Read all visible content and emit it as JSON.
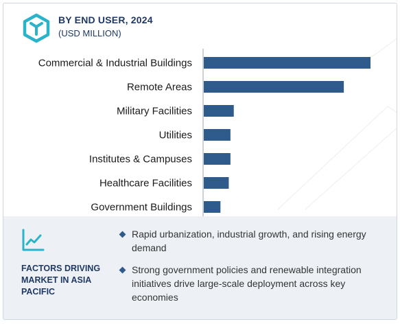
{
  "header": {
    "title": "BY END USER, 2024",
    "subtitle": "(USD MILLION)",
    "logo_icon": "hexagon-logo-icon"
  },
  "chart_data": {
    "type": "bar",
    "orientation": "horizontal",
    "categories": [
      "Commercial & Industrial Buildings",
      "Remote Areas",
      "Military Facilities",
      "Utilities",
      "Institutes & Campuses",
      "Healthcare Facilities",
      "Government Buildings"
    ],
    "values": [
      100,
      84,
      18,
      16,
      16,
      15,
      10
    ],
    "xlim": [
      0,
      100
    ],
    "axis_tick_labels": false,
    "grid": false,
    "bar_color": "#2f5b8c"
  },
  "panel": {
    "icon": "trend-chart-icon",
    "heading": "FACTORS DRIVING MARKET IN ASIA PACIFIC",
    "bullets": [
      "Rapid urbanization, industrial growth, and rising energy demand",
      "Strong government policies and renewable integration initiatives drive large-scale deployment across key economies"
    ]
  },
  "colors": {
    "accent": "#2f5b8c",
    "heading": "#203864",
    "panel_bg": "#edf1f6",
    "logo": "#2bb3c9"
  }
}
